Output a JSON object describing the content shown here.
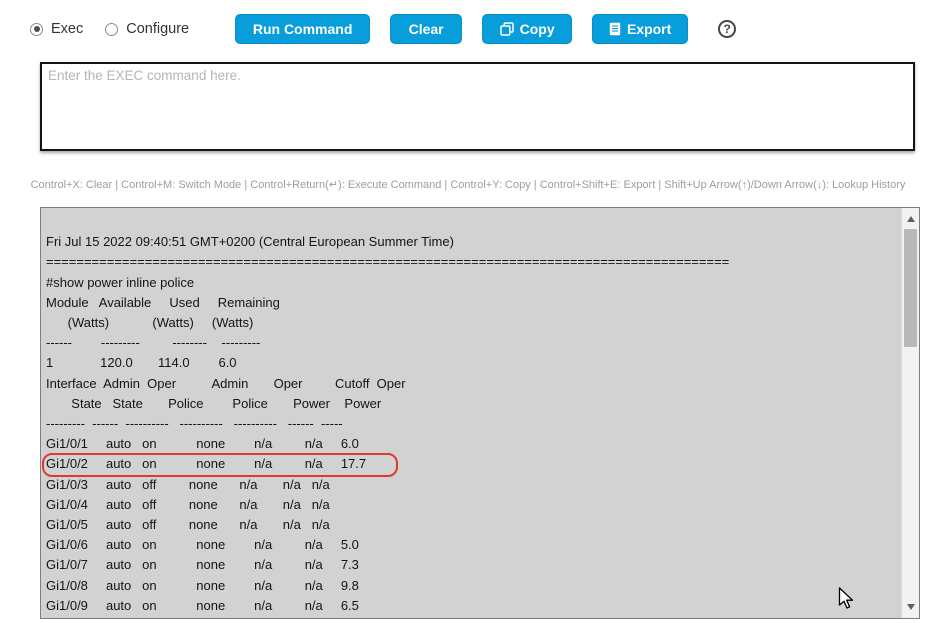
{
  "toolbar": {
    "modes": [
      {
        "label": "Exec",
        "selected": true
      },
      {
        "label": "Configure",
        "selected": false
      }
    ],
    "buttons": {
      "run": "Run Command",
      "clear": "Clear",
      "copy": "Copy",
      "export": "Export"
    },
    "help_label": "?"
  },
  "command_input": {
    "value": "",
    "placeholder": "Enter the EXEC command here."
  },
  "shortcuts": "Control+X: Clear | Control+M: Switch Mode | Control+Return(↵): Execute Command | Control+Y: Copy | Control+Shift+E: Export | Shift+Up Arrow(↑)/Down Arrow(↓): Lookup History",
  "colors": {
    "accent": "#089DDB",
    "highlight_box": "#E0392E",
    "console_bg": "#D2D2D2"
  },
  "console": {
    "timestamp": "Fri Jul 15 2022 09:40:51 GMT+0200 (Central European Summer Time)",
    "command": "#show power inline police",
    "highlighted_interface": "Gi1/0/2",
    "lines": [
      {
        "text": "",
        "highlight": false
      },
      {
        "text": "Fri Jul 15 2022 09:40:51 GMT+0200 (Central European Summer Time)",
        "highlight": false
      },
      {
        "text": "==========================================================================================",
        "highlight": false
      },
      {
        "text": "#show power inline police",
        "highlight": false
      },
      {
        "text": "Module   Available     Used     Remaining",
        "highlight": false
      },
      {
        "text": "      (Watts)            (Watts)     (Watts)",
        "highlight": false
      },
      {
        "text": "------        ---------         --------    ---------",
        "highlight": false
      },
      {
        "text": "1             120.0       114.0        6.0",
        "highlight": false
      },
      {
        "text": "Interface  Admin  Oper          Admin       Oper         Cutoff  Oper",
        "highlight": false
      },
      {
        "text": "       State   State       Police        Police       Power    Power",
        "highlight": false
      },
      {
        "text": "---------  ------  ----------   ----------   ----------   ------  -----",
        "highlight": false
      },
      {
        "text": "Gi1/0/1     auto   on           none        n/a         n/a     6.0",
        "highlight": false
      },
      {
        "text": "Gi1/0/2     auto   on           none        n/a         n/a     17.7",
        "highlight": true
      },
      {
        "text": "Gi1/0/3     auto   off         none      n/a       n/a   n/a",
        "highlight": false
      },
      {
        "text": "Gi1/0/4     auto   off         none      n/a       n/a   n/a",
        "highlight": false
      },
      {
        "text": "Gi1/0/5     auto   off         none      n/a       n/a   n/a",
        "highlight": false
      },
      {
        "text": "Gi1/0/6     auto   on           none        n/a         n/a     5.0",
        "highlight": false
      },
      {
        "text": "Gi1/0/7     auto   on           none        n/a         n/a     7.3",
        "highlight": false
      },
      {
        "text": "Gi1/0/8     auto   on           none        n/a         n/a     9.8",
        "highlight": false
      },
      {
        "text": "Gi1/0/9     auto   on           none        n/a         n/a     6.5",
        "highlight": false
      }
    ]
  }
}
